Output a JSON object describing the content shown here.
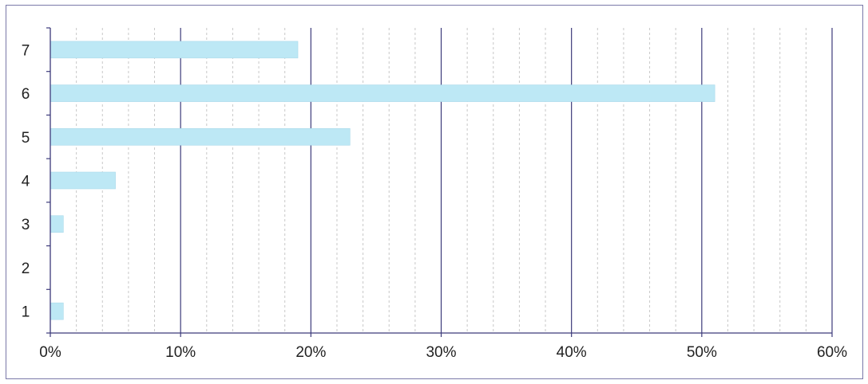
{
  "chart_data": {
    "type": "bar",
    "orientation": "horizontal",
    "title": "",
    "xlabel": "",
    "ylabel": "",
    "categories": [
      "1",
      "2",
      "3",
      "4",
      "5",
      "6",
      "7"
    ],
    "values": [
      1,
      0,
      1,
      5,
      23,
      51,
      19
    ],
    "value_format": "percent",
    "xlim": [
      0,
      60
    ],
    "x_ticks": [
      0,
      10,
      20,
      30,
      40,
      50,
      60
    ],
    "x_tick_labels": [
      "0%",
      "10%",
      "20%",
      "30%",
      "40%",
      "50%",
      "60%"
    ],
    "minor_gridlines": true,
    "grid": true,
    "legend": "none",
    "bar_color": "#bde8f5",
    "major_grid_color": "#3c3a7a",
    "minor_grid_color": "#c8c8c8",
    "axis_color": "#3c3a7a"
  }
}
